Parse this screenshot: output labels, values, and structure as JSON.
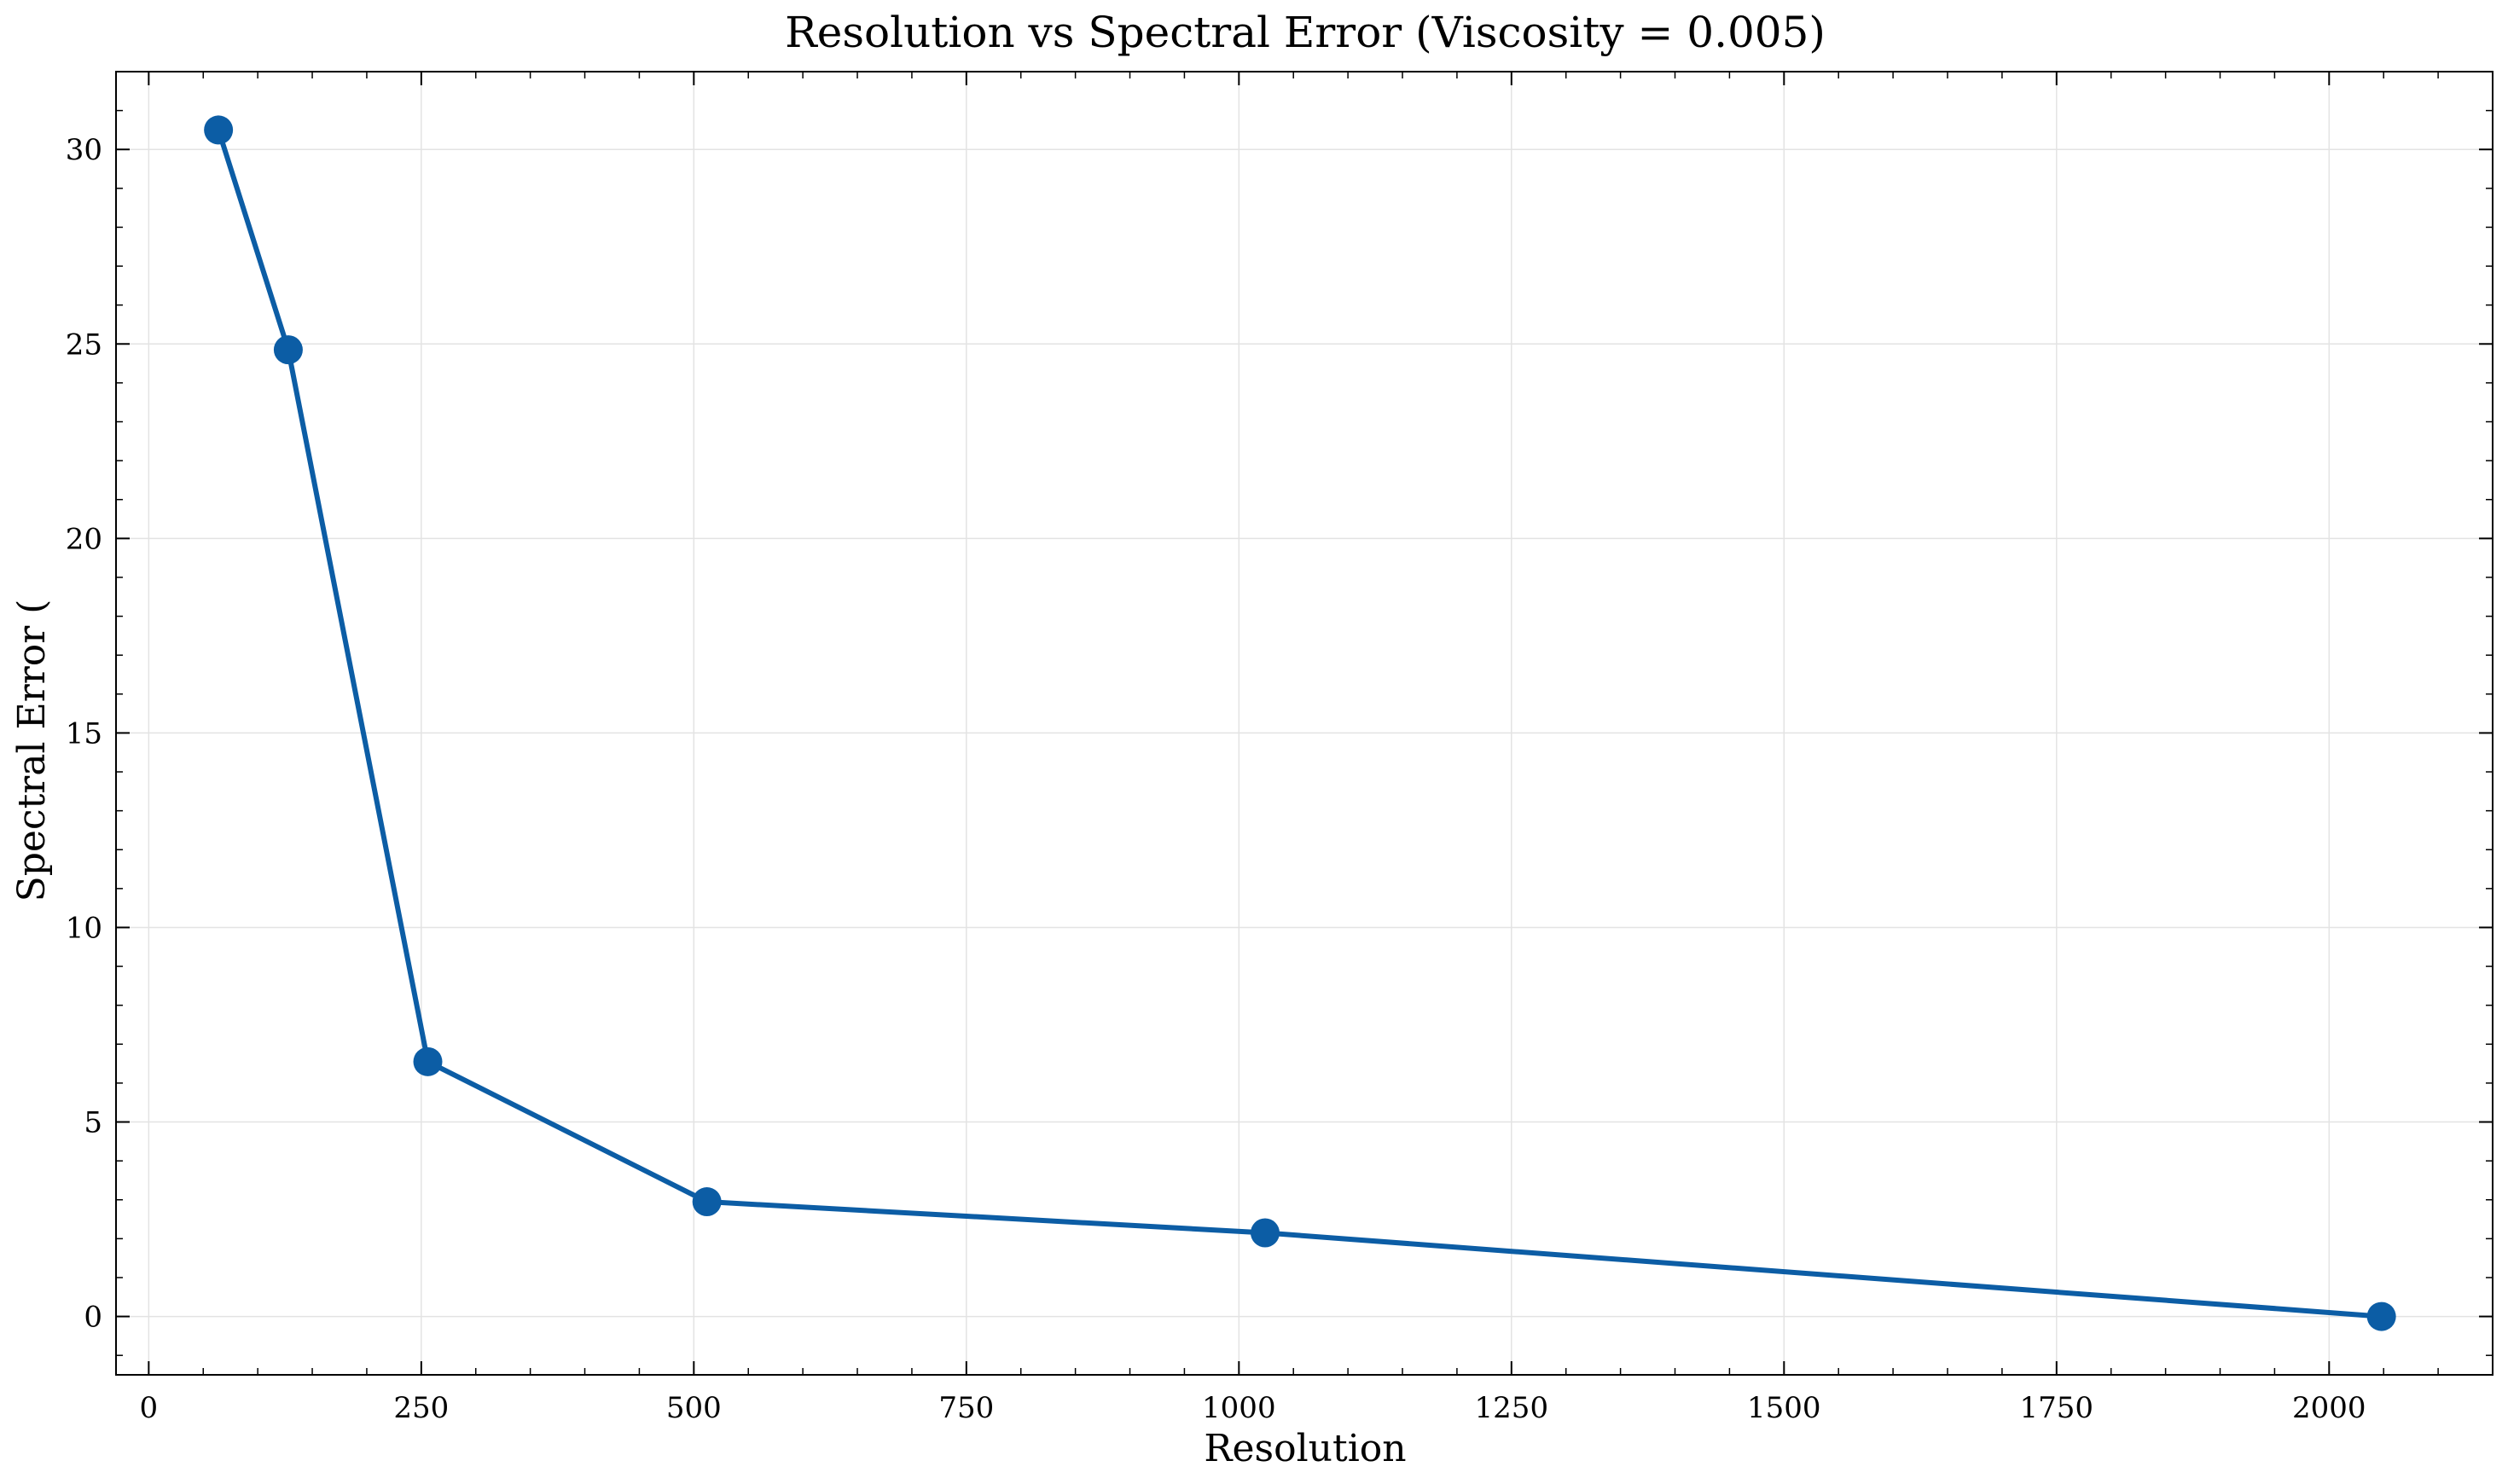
{
  "chart_data": {
    "type": "line",
    "title": "Resolution vs Spectral Error (Viscosity = 0.005)",
    "xlabel": "Resolution",
    "ylabel": "Spectral Error (",
    "xlim": [
      -30,
      2150
    ],
    "ylim": [
      -1.5,
      32
    ],
    "x_ticks": [
      0,
      250,
      500,
      750,
      1000,
      1250,
      1500,
      1750,
      2000
    ],
    "y_ticks": [
      0,
      5,
      10,
      15,
      20,
      25,
      30
    ],
    "x_tick_labels": [
      "0",
      "250",
      "500",
      "750",
      "1000",
      "1250",
      "1500",
      "1750",
      "2000"
    ],
    "y_tick_labels": [
      "0",
      "5",
      "10",
      "15",
      "20",
      "25",
      "30"
    ],
    "grid": true,
    "series": [
      {
        "x": [
          64,
          128,
          256,
          512,
          1024,
          2048
        ],
        "values": [
          30.5,
          24.85,
          6.55,
          2.95,
          2.15,
          0.0
        ],
        "color": "#0c5da5"
      }
    ]
  }
}
